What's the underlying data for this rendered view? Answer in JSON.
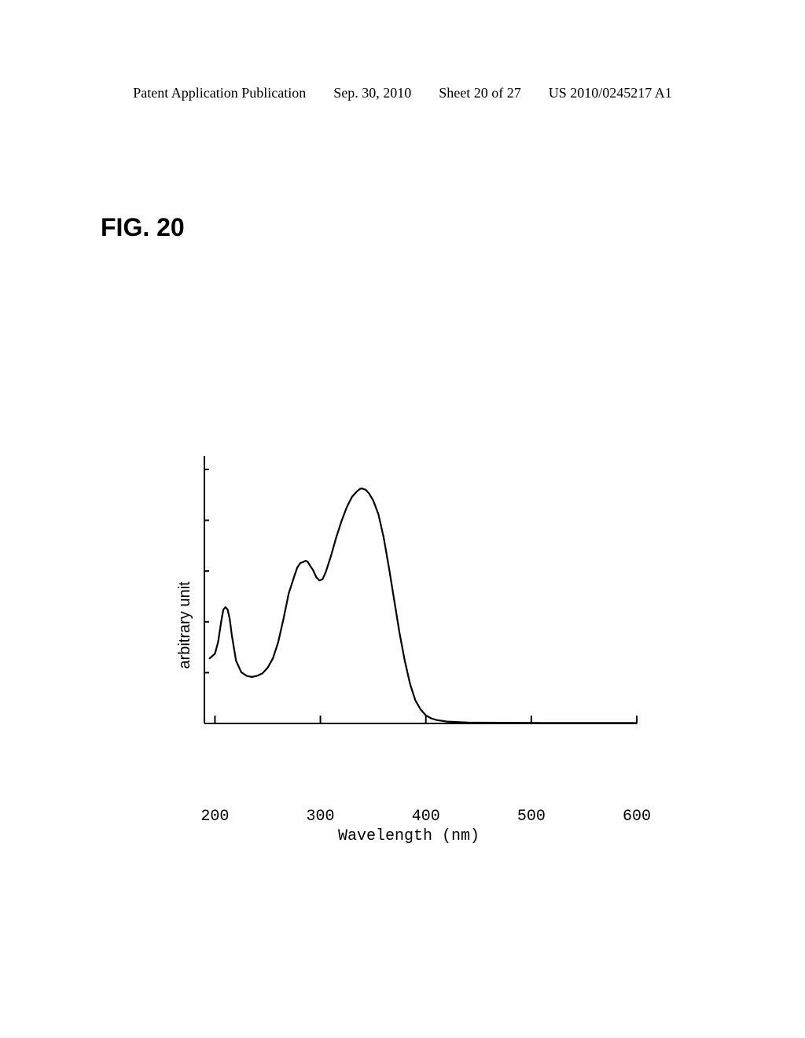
{
  "header": {
    "left": "Patent Application Publication",
    "date": "Sep. 30, 2010",
    "sheet": "Sheet 20 of 27",
    "pubno": "US 2010/0245217 A1"
  },
  "figure_label": "FIG. 20",
  "chart": {
    "type": "line",
    "xlabel": "Wavelength (nm)",
    "ylabel": "arbitrary unit",
    "xlim": [
      190,
      600
    ],
    "ylim": [
      0,
      1.15
    ],
    "xticks": [
      200,
      300,
      400,
      500,
      600
    ],
    "xtick_labels": [
      "200",
      "300",
      "400",
      "500",
      "600"
    ],
    "yticks_count": 5,
    "line_color": "#000000",
    "line_width": 2.2,
    "background_color": "#ffffff",
    "axis_color": "#000000",
    "axis_width": 2,
    "tick_length_major": 10,
    "tick_length_minor": 6,
    "plot_box_width": 550,
    "plot_box_height": 340,
    "data_points": [
      [
        195,
        0.28
      ],
      [
        200,
        0.3
      ],
      [
        203,
        0.35
      ],
      [
        206,
        0.44
      ],
      [
        208,
        0.49
      ],
      [
        210,
        0.5
      ],
      [
        212,
        0.49
      ],
      [
        214,
        0.45
      ],
      [
        216,
        0.38
      ],
      [
        220,
        0.27
      ],
      [
        225,
        0.22
      ],
      [
        230,
        0.205
      ],
      [
        235,
        0.2
      ],
      [
        240,
        0.205
      ],
      [
        245,
        0.215
      ],
      [
        250,
        0.24
      ],
      [
        255,
        0.28
      ],
      [
        260,
        0.35
      ],
      [
        265,
        0.45
      ],
      [
        270,
        0.56
      ],
      [
        275,
        0.63
      ],
      [
        278,
        0.67
      ],
      [
        281,
        0.69
      ],
      [
        284,
        0.695
      ],
      [
        286,
        0.7
      ],
      [
        288,
        0.695
      ],
      [
        290,
        0.68
      ],
      [
        293,
        0.66
      ],
      [
        296,
        0.63
      ],
      [
        299,
        0.615
      ],
      [
        302,
        0.62
      ],
      [
        305,
        0.65
      ],
      [
        310,
        0.72
      ],
      [
        315,
        0.8
      ],
      [
        320,
        0.87
      ],
      [
        325,
        0.93
      ],
      [
        330,
        0.975
      ],
      [
        335,
        1.0
      ],
      [
        338,
        1.01
      ],
      [
        340,
        1.01
      ],
      [
        343,
        1.005
      ],
      [
        346,
        0.99
      ],
      [
        350,
        0.96
      ],
      [
        355,
        0.9
      ],
      [
        360,
        0.8
      ],
      [
        365,
        0.67
      ],
      [
        370,
        0.53
      ],
      [
        375,
        0.39
      ],
      [
        380,
        0.27
      ],
      [
        385,
        0.17
      ],
      [
        390,
        0.1
      ],
      [
        395,
        0.06
      ],
      [
        400,
        0.035
      ],
      [
        405,
        0.022
      ],
      [
        410,
        0.015
      ],
      [
        420,
        0.008
      ],
      [
        440,
        0.004
      ],
      [
        470,
        0.003
      ],
      [
        510,
        0.002
      ],
      [
        560,
        0.002
      ],
      [
        600,
        0.002
      ]
    ]
  }
}
